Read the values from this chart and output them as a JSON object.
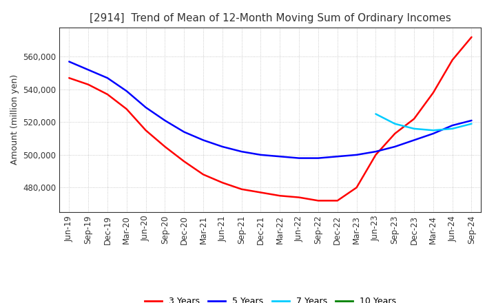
{
  "title": "[2914]  Trend of Mean of 12-Month Moving Sum of Ordinary Incomes",
  "ylabel": "Amount (million yen)",
  "ylim": [
    465000,
    578000
  ],
  "yticks": [
    480000,
    500000,
    520000,
    540000,
    560000
  ],
  "line_colors": {
    "3y": "#ff0000",
    "5y": "#0000ff",
    "7y": "#00ccff",
    "10y": "#008000"
  },
  "legend_labels": [
    "3 Years",
    "5 Years",
    "7 Years",
    "10 Years"
  ],
  "x_labels": [
    "Jun-19",
    "Sep-19",
    "Dec-19",
    "Mar-20",
    "Jun-20",
    "Sep-20",
    "Dec-20",
    "Mar-21",
    "Jun-21",
    "Sep-21",
    "Dec-21",
    "Mar-22",
    "Jun-22",
    "Sep-22",
    "Dec-22",
    "Mar-23",
    "Jun-23",
    "Sep-23",
    "Dec-23",
    "Mar-24",
    "Jun-24",
    "Sep-24"
  ],
  "data_3y": [
    547000,
    543000,
    537000,
    528000,
    515000,
    505000,
    496000,
    488000,
    483000,
    479000,
    477000,
    475000,
    474000,
    472000,
    472000,
    480000,
    500000,
    513000,
    522000,
    538000,
    558000,
    572000
  ],
  "data_5y": [
    557000,
    552000,
    547000,
    539000,
    529000,
    521000,
    514000,
    509000,
    505000,
    502000,
    500000,
    499000,
    498000,
    498000,
    499000,
    500000,
    502000,
    505000,
    509000,
    513000,
    518000,
    521000
  ],
  "data_7y": [
    null,
    null,
    null,
    null,
    null,
    null,
    null,
    null,
    null,
    null,
    null,
    null,
    null,
    null,
    null,
    null,
    525000,
    519000,
    516000,
    515000,
    516000,
    519000
  ],
  "data_10y": [
    null,
    null,
    null,
    null,
    null,
    null,
    null,
    null,
    null,
    null,
    null,
    null,
    null,
    null,
    null,
    null,
    null,
    null,
    null,
    null,
    null,
    null
  ],
  "background_color": "#ffffff",
  "grid_color": "#bbbbbb",
  "title_fontsize": 11,
  "axis_label_fontsize": 9,
  "tick_fontsize": 8.5,
  "line_width": 1.8
}
